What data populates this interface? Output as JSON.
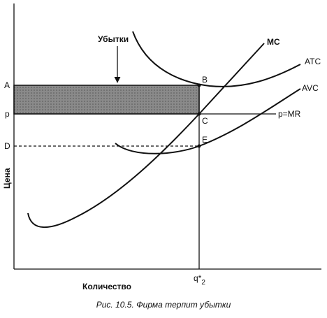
{
  "diagram": {
    "curves": {
      "mc": "MC",
      "atc": "ATC",
      "avc": "AVC"
    },
    "price_line": "p=MR",
    "loss_label": "Убытки",
    "y_levels": {
      "a": "A",
      "p": "p",
      "d": "D"
    },
    "points": {
      "b": "B",
      "c": "C",
      "e": "E"
    },
    "y_axis_label": "Цена",
    "x_axis_label": "Количество",
    "quantity_label": {
      "base": "q*",
      "subscript": "2"
    }
  },
  "caption": "Рис. 10.5. Фирма терпит убытки"
}
